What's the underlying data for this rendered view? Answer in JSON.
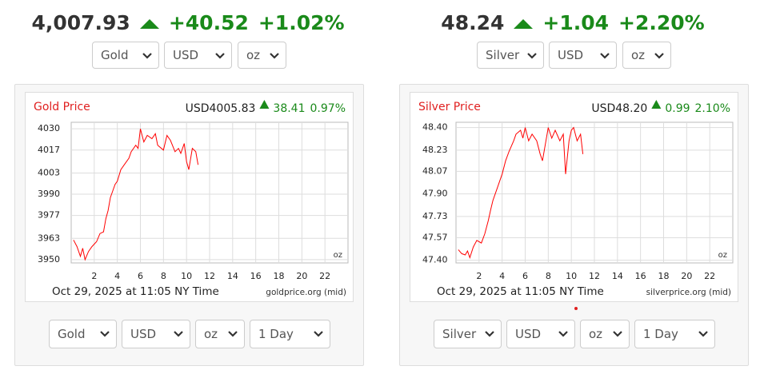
{
  "chart_data": [
    {
      "type": "line",
      "title": "Gold Price",
      "quote": {
        "price": "USD4005.83",
        "change": "38.41",
        "change_pct": "0.97%"
      },
      "unit": "oz",
      "timestamp": "Oct 29, 2025 at 11:05 NY Time",
      "source": "goldprice.org (mid)",
      "color": "#ff0000",
      "grid": true,
      "x": [
        0.2,
        0.5,
        0.8,
        1.0,
        1.2,
        1.5,
        1.8,
        2.2,
        2.5,
        2.8,
        3.0,
        3.2,
        3.4,
        3.6,
        3.8,
        4.0,
        4.3,
        4.6,
        5.0,
        5.2,
        5.6,
        5.8,
        6.0,
        6.3,
        6.6,
        7.0,
        7.3,
        7.5,
        8.0,
        8.3,
        8.6,
        9.0,
        9.3,
        9.5,
        9.8,
        10.0,
        10.2,
        10.5,
        10.8,
        11.0
      ],
      "values": [
        3962,
        3958,
        3952,
        3957,
        3950,
        3955,
        3958,
        3961,
        3966,
        3967,
        3975,
        3980,
        3988,
        3992,
        3996,
        3998,
        4005,
        4008,
        4012,
        4016,
        4020,
        4018,
        4030,
        4022,
        4026,
        4024,
        4027,
        4020,
        4017,
        4026,
        4023,
        4016,
        4018,
        4015,
        4021,
        4010,
        4005,
        4018,
        4016,
        4008
      ],
      "xlim": [
        0,
        24
      ],
      "xticks": [
        2,
        4,
        6,
        8,
        10,
        12,
        14,
        16,
        18,
        20,
        22
      ],
      "ylim": [
        3948,
        4034
      ],
      "yticks": [
        3950,
        3963,
        3977,
        3990,
        4003,
        4017,
        4030
      ]
    },
    {
      "type": "line",
      "title": "Silver Price",
      "quote": {
        "price": "USD48.20",
        "change": "0.99",
        "change_pct": "2.10%"
      },
      "unit": "oz",
      "timestamp": "Oct 29, 2025 at 11:05 NY Time",
      "source": "silverprice.org (mid)",
      "color": "#ff0000",
      "grid": true,
      "x": [
        0.2,
        0.5,
        0.8,
        1.0,
        1.2,
        1.5,
        1.8,
        2.2,
        2.5,
        2.8,
        3.0,
        3.2,
        3.4,
        3.6,
        3.8,
        4.0,
        4.3,
        4.6,
        5.0,
        5.2,
        5.6,
        5.8,
        6.0,
        6.3,
        6.6,
        7.0,
        7.3,
        7.5,
        8.0,
        8.3,
        8.6,
        9.0,
        9.3,
        9.5,
        9.8,
        10.0,
        10.2,
        10.5,
        10.8,
        11.0
      ],
      "values": [
        47.48,
        47.45,
        47.44,
        47.47,
        47.42,
        47.5,
        47.55,
        47.53,
        47.6,
        47.7,
        47.78,
        47.85,
        47.9,
        47.95,
        48.0,
        48.05,
        48.15,
        48.22,
        48.3,
        48.35,
        48.38,
        48.32,
        48.4,
        48.3,
        48.35,
        48.3,
        48.2,
        48.15,
        48.4,
        48.32,
        48.38,
        48.3,
        48.35,
        48.05,
        48.3,
        48.38,
        48.4,
        48.3,
        48.35,
        48.2
      ],
      "xlim": [
        0,
        24
      ],
      "xticks": [
        2,
        4,
        6,
        8,
        10,
        12,
        14,
        16,
        18,
        20,
        22
      ],
      "ylim": [
        47.38,
        48.44
      ],
      "yticks": [
        {
          "value": 47.4,
          "label": "47.40"
        },
        47.57,
        47.73,
        {
          "value": 47.9,
          "label": "47.90"
        },
        48.07,
        48.23,
        {
          "value": 48.4,
          "label": "48.40"
        }
      ]
    }
  ],
  "widgets": [
    {
      "price": "4,007.93",
      "change": "+40.52",
      "change_pct": "+1.02%",
      "selects": [
        "Gold",
        "USD",
        "oz"
      ],
      "bottom_selects": [
        "Gold",
        "USD",
        "oz",
        "1 Day"
      ]
    },
    {
      "price": "48.24",
      "change": "+1.04",
      "change_pct": "+2.20%",
      "selects": [
        "Silver",
        "USD",
        "oz"
      ],
      "bottom_selects": [
        "Silver",
        "USD",
        "oz",
        "1 Day"
      ]
    }
  ]
}
